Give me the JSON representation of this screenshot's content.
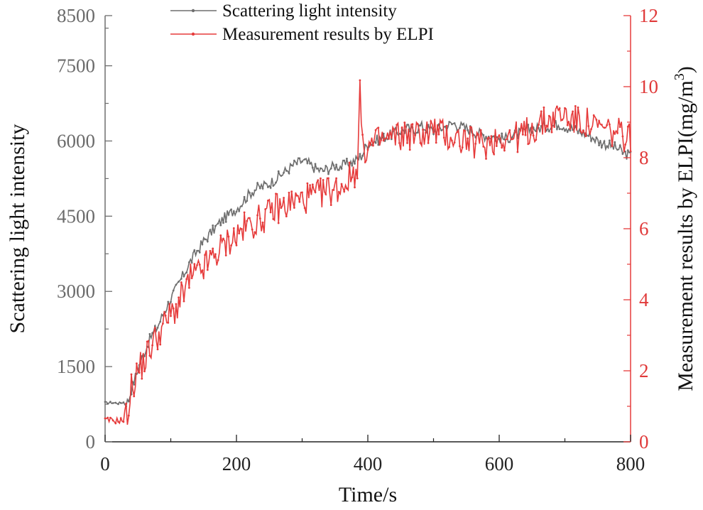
{
  "chart_data": {
    "type": "line",
    "xlabel": "Time/s",
    "ylabel_left": "Scattering light intensity",
    "ylabel_right": "Measurement results by  ELPI(mg/m",
    "ylabel_right_sup": "3",
    "ylabel_right_tail": ")",
    "xlim": [
      0,
      800
    ],
    "ylim_left": [
      0,
      8500
    ],
    "ylim_right": [
      0,
      12
    ],
    "x_ticks": [
      "0",
      "200",
      "400",
      "600",
      "800"
    ],
    "y_left_ticks": [
      "0",
      "1500",
      "3000",
      "4500",
      "6000",
      "7500",
      "8500"
    ],
    "y_right_ticks": [
      "0",
      "2",
      "4",
      "6",
      "8",
      "10",
      "12"
    ],
    "legend": [
      "Scattering light intensity",
      "Measurement results by  ELPI"
    ],
    "colors": {
      "scatter": "#6e6e6e",
      "elpi": "#e63b3b"
    },
    "series": [
      {
        "name": "Scattering light intensity",
        "axis": "left",
        "x": [
          0,
          10,
          20,
          30,
          35,
          40,
          50,
          60,
          70,
          80,
          90,
          100,
          110,
          120,
          130,
          140,
          150,
          160,
          170,
          180,
          190,
          200,
          210,
          220,
          230,
          240,
          250,
          260,
          270,
          280,
          290,
          300,
          310,
          320,
          330,
          340,
          350,
          360,
          370,
          380,
          390,
          400,
          410,
          420,
          430,
          440,
          450,
          460,
          470,
          480,
          490,
          500,
          510,
          520,
          530,
          540,
          550,
          560,
          570,
          580,
          590,
          600,
          610,
          620,
          630,
          640,
          650,
          660,
          670,
          680,
          690,
          700,
          710,
          720,
          730,
          740,
          750,
          760,
          770,
          780,
          790,
          800
        ],
        "values": [
          780,
          780,
          770,
          790,
          800,
          1050,
          1450,
          1800,
          2100,
          2300,
          2600,
          2850,
          3100,
          3350,
          3600,
          3800,
          4000,
          4150,
          4300,
          4450,
          4550,
          4650,
          4800,
          4950,
          5050,
          5100,
          5150,
          5250,
          5350,
          5450,
          5550,
          5600,
          5550,
          5450,
          5400,
          5450,
          5500,
          5500,
          5550,
          5600,
          5700,
          5950,
          6000,
          6050,
          6100,
          6150,
          6200,
          6250,
          6200,
          6300,
          6250,
          6200,
          6250,
          6300,
          6350,
          6300,
          6250,
          6200,
          6150,
          6100,
          6100,
          6050,
          6050,
          6100,
          6150,
          6200,
          6250,
          6250,
          6300,
          6300,
          6350,
          6300,
          6250,
          6200,
          6150,
          6100,
          6000,
          5950,
          5900,
          5850,
          5750,
          5700
        ]
      },
      {
        "name": "Measurement results by  ELPI",
        "axis": "right",
        "x": [
          0,
          10,
          20,
          30,
          35,
          40,
          50,
          60,
          70,
          80,
          90,
          100,
          110,
          120,
          130,
          140,
          150,
          160,
          170,
          180,
          190,
          200,
          210,
          220,
          230,
          240,
          250,
          260,
          270,
          280,
          290,
          300,
          310,
          320,
          330,
          340,
          350,
          360,
          370,
          380,
          385,
          388,
          392,
          400,
          410,
          420,
          430,
          440,
          450,
          460,
          470,
          480,
          490,
          500,
          510,
          520,
          530,
          540,
          550,
          560,
          570,
          580,
          590,
          600,
          610,
          620,
          630,
          640,
          650,
          660,
          670,
          680,
          690,
          700,
          710,
          720,
          730,
          740,
          750,
          760,
          770,
          780,
          790,
          800
        ],
        "values": [
          0.6,
          0.6,
          0.6,
          0.6,
          0.9,
          1.5,
          2.0,
          2.3,
          2.7,
          3.0,
          3.3,
          3.6,
          3.8,
          4.2,
          4.6,
          4.7,
          4.9,
          5.1,
          5.3,
          5.5,
          5.7,
          5.8,
          6.0,
          6.1,
          6.2,
          6.3,
          6.4,
          6.6,
          6.6,
          6.7,
          6.8,
          6.8,
          6.9,
          6.9,
          7.0,
          7.1,
          7.1,
          7.2,
          7.4,
          7.6,
          7.9,
          10.0,
          8.2,
          8.3,
          8.4,
          8.5,
          8.5,
          8.6,
          8.6,
          8.7,
          8.6,
          8.7,
          8.7,
          8.8,
          8.7,
          8.6,
          8.6,
          8.5,
          8.5,
          8.4,
          8.4,
          8.4,
          8.5,
          8.6,
          8.6,
          8.6,
          8.6,
          8.7,
          8.8,
          8.9,
          9.0,
          9.1,
          9.2,
          9.2,
          9.1,
          9.0,
          9.0,
          8.9,
          8.8,
          8.8,
          8.7,
          8.7,
          8.6,
          8.6
        ]
      }
    ]
  }
}
